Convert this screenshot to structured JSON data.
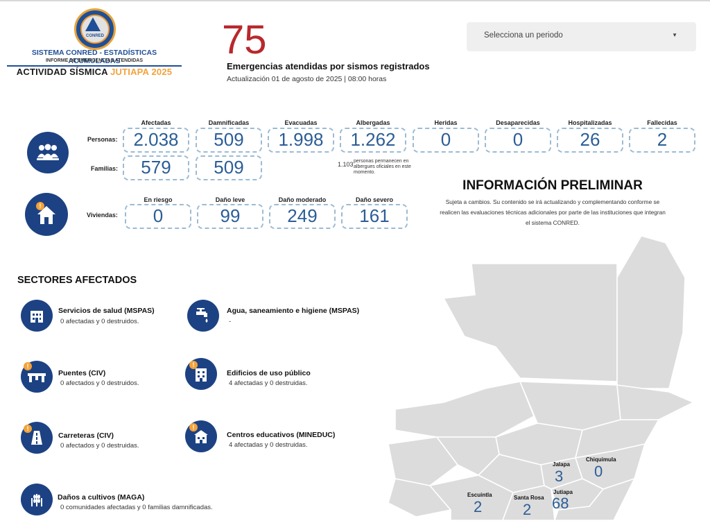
{
  "logo": {
    "seal_text": "CONRED",
    "title": "SISTEMA CONRED - ESTADÍSTICAS ACUMULADAS",
    "subtitle": "INFORME DE EMERGENCIAS ATENDIDAS",
    "activity_prefix": "ACTIVIDAD SÍSMICA ",
    "activity_accent": "JUTIAPA 2025"
  },
  "summary": {
    "count": "75",
    "label": "Emergencias atendidas por sismos registrados",
    "update": "Actualización 01 de agosto de 2025 | 08:00 horas"
  },
  "period_select": {
    "value": "Selecciona un periodo"
  },
  "people": {
    "row_persons": "Personas:",
    "row_families": "Familias:",
    "headers": [
      "Afectadas",
      "Damnificadas",
      "Evacuadas",
      "Albergadas",
      "Heridas",
      "Desaparecidas",
      "Hospitalizadas",
      "Fallecidas"
    ],
    "persons": [
      "2.038",
      "509",
      "1.998",
      "1.262",
      "0",
      "0",
      "26",
      "2"
    ],
    "families": [
      "579",
      "509"
    ],
    "shelter_note_value": "1.103",
    "shelter_note_text": "personas permanecen en albergues oficiales en este momento."
  },
  "housing": {
    "row_label": "Viviendas:",
    "headers": [
      "En riesgo",
      "Daño leve",
      "Daño moderado",
      "Daño severo"
    ],
    "values": [
      "0",
      "99",
      "249",
      "161"
    ]
  },
  "preliminary": {
    "title": "INFORMACIÓN PRELIMINAR",
    "text": "Sujeta a cambios. Su contenido se irá actualizando y complementando conforme se realicen las evaluaciones técnicas adicionales por parte de las instituciones que integran el sistema CONRED."
  },
  "sectors": {
    "title": "SECTORES AFECTADOS",
    "items": [
      {
        "name": "Servicios de salud (MSPAS)",
        "status": "0 afectadas y 0 destruidos.",
        "icon": "hospital-icon"
      },
      {
        "name": "Agua, saneamiento e higiene (MSPAS)",
        "status": "-",
        "icon": "water-tap-icon"
      },
      {
        "name": "Puentes (CIV)",
        "status": "0 afectados y 0 destruidos.",
        "icon": "bridge-icon"
      },
      {
        "name": "Edificios de uso público",
        "status": "4 afectadas y 0 destruidas.",
        "icon": "public-building-icon"
      },
      {
        "name": "Carreteras (CIV)",
        "status": "0 afectados y 0 destruidas.",
        "icon": "road-icon"
      },
      {
        "name": "Centros educativos (MINEDUC)",
        "status": "4 afectadas y 0 destruidas.",
        "icon": "school-icon"
      },
      {
        "name": "Daños a cultivos (MAGA)",
        "status": "0 comunidades afectadas y 0 familias damnificadas.",
        "icon": "crops-icon"
      }
    ]
  },
  "map": {
    "departments": [
      {
        "name": "Jalapa",
        "value": "3"
      },
      {
        "name": "Chiquimula",
        "value": "0"
      },
      {
        "name": "Escuintla",
        "value": "2"
      },
      {
        "name": "Santa Rosa",
        "value": "2"
      },
      {
        "name": "Jutiapa",
        "value": "68"
      }
    ]
  },
  "colors": {
    "primary": "#1d4283",
    "accent": "#f2a23a",
    "highlight": "#b8282d",
    "value": "#2b5d97"
  }
}
